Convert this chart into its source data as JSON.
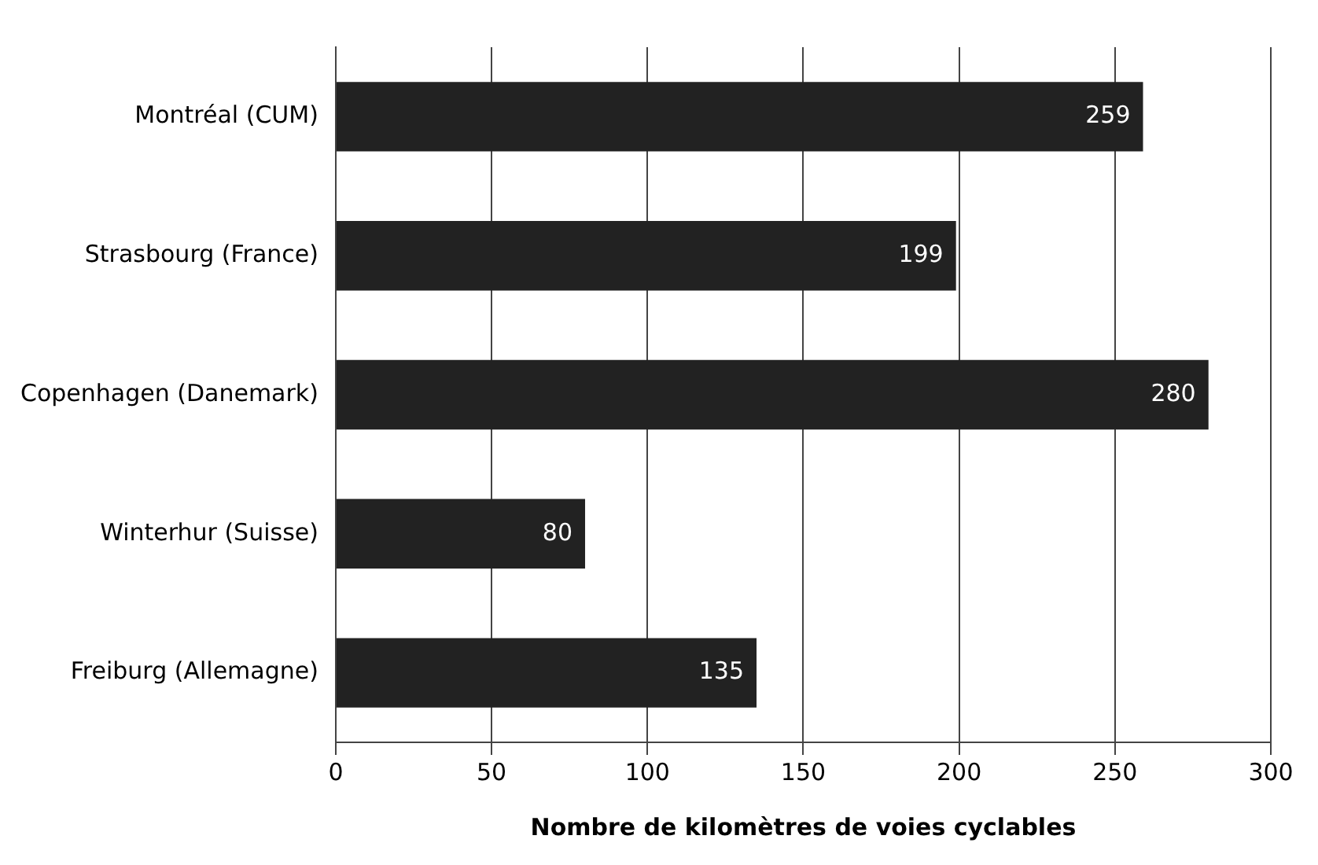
{
  "chart_data": {
    "type": "bar",
    "orientation": "horizontal",
    "xlabel": "Nombre de kilomètres de voies cyclables",
    "categories": [
      "Montréal (CUM)",
      "Strasbourg (France)",
      "Copenhagen (Danemark)",
      "Winterhur (Suisse)",
      "Freiburg (Allemagne)"
    ],
    "values": [
      259,
      199,
      280,
      80,
      135
    ],
    "color": "#222222",
    "xlim": [
      0,
      300
    ],
    "xticks": [
      0,
      50,
      100,
      150,
      200,
      250,
      300
    ],
    "grid": "x",
    "data_labels": true
  }
}
